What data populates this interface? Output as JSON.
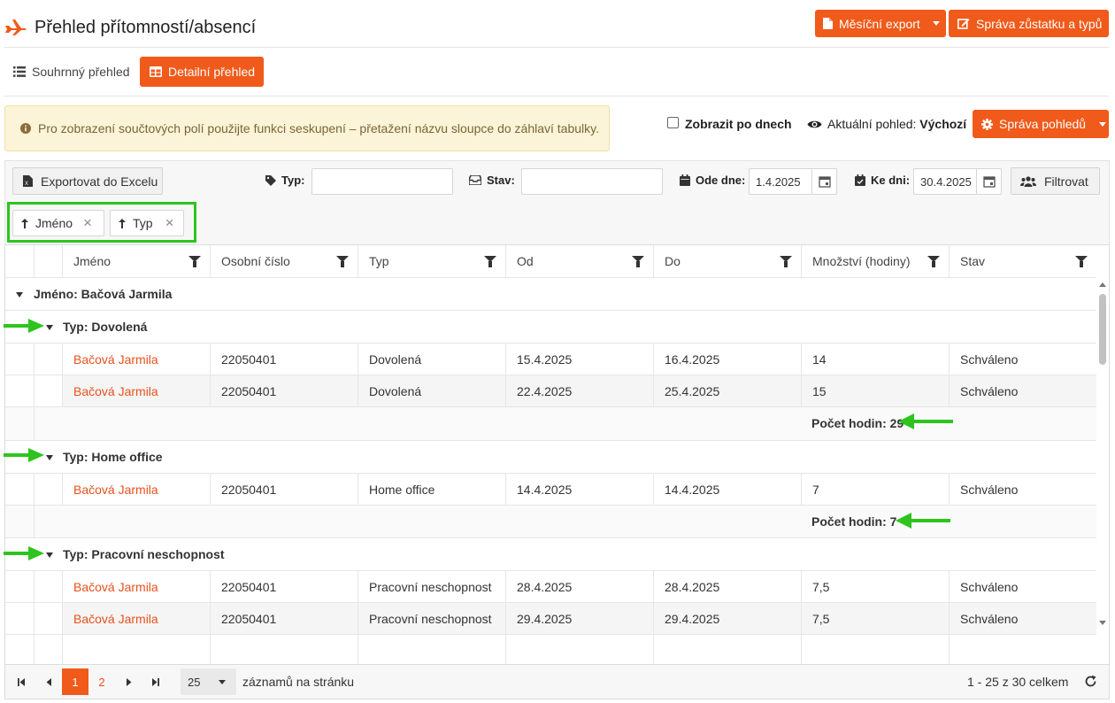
{
  "header": {
    "title": "Přehled přítomností/absencí",
    "monthly_export": "Měsíční export",
    "manage_balance": "Správa zůstatku a typů"
  },
  "tabs": [
    {
      "label": "Souhrnný přehled",
      "active": false
    },
    {
      "label": "Detailní přehled",
      "active": true
    }
  ],
  "info": {
    "text": "Pro zobrazení součtových polí použijte funkci seskupení – přetažení názvu sloupce do záhlaví tabulky."
  },
  "view": {
    "by_days_label": "Zobrazit po dnech",
    "current_view_label": "Aktuální pohled:",
    "current_view_value": "Výchozí",
    "manage_views": "Správa pohledů"
  },
  "toolbar": {
    "export_excel": "Exportovat do Excelu",
    "type_label": "Typ:",
    "type_value": "",
    "state_label": "Stav:",
    "state_value": "",
    "from_label": "Ode dne:",
    "from_value": "1.4.2025",
    "to_label": "Ke dni:",
    "to_value": "30.4.2025",
    "filter_button": "Filtrovat"
  },
  "grouping": [
    {
      "label": "Jméno"
    },
    {
      "label": "Typ"
    }
  ],
  "columns": [
    "Jméno",
    "Osobní číslo",
    "Typ",
    "Od",
    "Do",
    "Množství (hodiny)",
    "Stav"
  ],
  "group_name": "Jméno: Bačová Jarmila",
  "groups": [
    {
      "title": "Typ: Dovolená",
      "rows": [
        [
          "Bačová Jarmila",
          "22050401",
          "Dovolená",
          "15.4.2025",
          "16.4.2025",
          "14",
          "Schváleno"
        ],
        [
          "Bačová Jarmila",
          "22050401",
          "Dovolená",
          "22.4.2025",
          "25.4.2025",
          "15",
          "Schváleno"
        ]
      ],
      "footer": "Počet hodin: 29"
    },
    {
      "title": "Typ: Home office",
      "rows": [
        [
          "Bačová Jarmila",
          "22050401",
          "Home office",
          "14.4.2025",
          "14.4.2025",
          "7",
          "Schváleno"
        ]
      ],
      "footer": "Počet hodin: 7"
    },
    {
      "title": "Typ: Pracovní neschopnost",
      "rows": [
        [
          "Bačová Jarmila",
          "22050401",
          "Pracovní neschopnost",
          "28.4.2025",
          "28.4.2025",
          "7,5",
          "Schváleno"
        ],
        [
          "Bačová Jarmila",
          "22050401",
          "Pracovní neschopnost",
          "29.4.2025",
          "29.4.2025",
          "7,5",
          "Schváleno"
        ]
      ]
    }
  ],
  "pager": {
    "pages": [
      "1",
      "2"
    ],
    "current_page": "1",
    "page_size": "25",
    "per_page_label": "záznamů na stránku",
    "summary": "1 - 25 z 30 celkem"
  },
  "colors": {
    "accent": "#f05a1a",
    "link": "#e8511c",
    "highlight": "#2ec41f",
    "info_bg": "#fcf4d8"
  },
  "icons": [
    "plane-icon",
    "file-icon",
    "edit-icon",
    "list-icon",
    "table-icon",
    "info-icon",
    "eye-icon",
    "gear-icon",
    "excel-icon",
    "tag-icon",
    "inbox-icon",
    "calendar-icon",
    "calendar-check-icon",
    "users-icon",
    "arrow-up-icon",
    "close-icon",
    "filter-icon",
    "refresh-icon"
  ]
}
